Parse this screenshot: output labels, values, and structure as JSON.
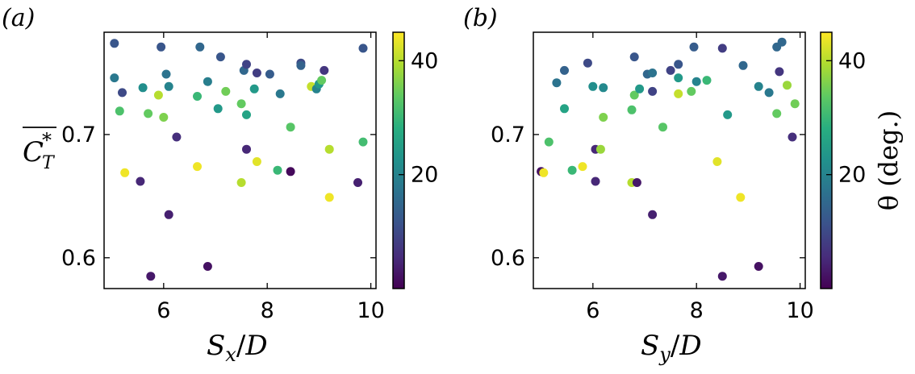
{
  "chart_data": [
    {
      "type": "scatter",
      "panel_label": "(a)",
      "xlabel": "S_x/D",
      "ylabel": "C_T*",
      "xlim": [
        4.85,
        10.1
      ],
      "ylim": [
        0.575,
        0.783
      ],
      "xticks": [
        6,
        8,
        10
      ],
      "yticks": [
        0.6,
        0.7
      ],
      "x_tick_labels": [
        "6",
        "8",
        "10"
      ],
      "y_tick_labels": [
        "0.6",
        "0.7"
      ],
      "colorbar": {
        "label": "θ (deg.)",
        "range": [
          0,
          45
        ],
        "ticks": [
          20,
          40
        ],
        "tick_labels": [
          "20",
          "40"
        ],
        "colormap": "viridis"
      },
      "points": [
        {
          "x": 5.05,
          "y": 0.774,
          "c": 12
        },
        {
          "x": 5.05,
          "y": 0.746,
          "c": 18
        },
        {
          "x": 5.2,
          "y": 0.734,
          "c": 10
        },
        {
          "x": 5.15,
          "y": 0.719,
          "c": 32
        },
        {
          "x": 5.25,
          "y": 0.669,
          "c": 44
        },
        {
          "x": 5.55,
          "y": 0.662,
          "c": 5
        },
        {
          "x": 5.6,
          "y": 0.738,
          "c": 22
        },
        {
          "x": 5.7,
          "y": 0.717,
          "c": 34
        },
        {
          "x": 5.75,
          "y": 0.585,
          "c": 3
        },
        {
          "x": 5.9,
          "y": 0.732,
          "c": 40
        },
        {
          "x": 5.95,
          "y": 0.771,
          "c": 12
        },
        {
          "x": 6.0,
          "y": 0.714,
          "c": 36
        },
        {
          "x": 6.05,
          "y": 0.749,
          "c": 17
        },
        {
          "x": 6.1,
          "y": 0.739,
          "c": 20
        },
        {
          "x": 6.1,
          "y": 0.635,
          "c": 4
        },
        {
          "x": 6.25,
          "y": 0.698,
          "c": 6
        },
        {
          "x": 6.65,
          "y": 0.731,
          "c": 30
        },
        {
          "x": 6.65,
          "y": 0.674,
          "c": 44
        },
        {
          "x": 6.7,
          "y": 0.771,
          "c": 15
        },
        {
          "x": 6.85,
          "y": 0.743,
          "c": 19
        },
        {
          "x": 6.85,
          "y": 0.593,
          "c": 2
        },
        {
          "x": 7.05,
          "y": 0.721,
          "c": 24
        },
        {
          "x": 7.1,
          "y": 0.763,
          "c": 12
        },
        {
          "x": 7.2,
          "y": 0.735,
          "c": 35
        },
        {
          "x": 7.5,
          "y": 0.725,
          "c": 34
        },
        {
          "x": 7.5,
          "y": 0.661,
          "c": 40
        },
        {
          "x": 7.55,
          "y": 0.752,
          "c": 15
        },
        {
          "x": 7.6,
          "y": 0.757,
          "c": 9
        },
        {
          "x": 7.6,
          "y": 0.716,
          "c": 26
        },
        {
          "x": 7.6,
          "y": 0.688,
          "c": 5
        },
        {
          "x": 7.75,
          "y": 0.737,
          "c": 24
        },
        {
          "x": 7.8,
          "y": 0.75,
          "c": 8
        },
        {
          "x": 7.8,
          "y": 0.678,
          "c": 43
        },
        {
          "x": 8.05,
          "y": 0.749,
          "c": 13
        },
        {
          "x": 8.2,
          "y": 0.671,
          "c": 30
        },
        {
          "x": 8.25,
          "y": 0.733,
          "c": 18
        },
        {
          "x": 8.45,
          "y": 0.706,
          "c": 33
        },
        {
          "x": 8.45,
          "y": 0.67,
          "c": 1
        },
        {
          "x": 8.65,
          "y": 0.758,
          "c": 10
        },
        {
          "x": 8.65,
          "y": 0.756,
          "c": 14
        },
        {
          "x": 8.85,
          "y": 0.739,
          "c": 41
        },
        {
          "x": 8.95,
          "y": 0.737,
          "c": 20
        },
        {
          "x": 9.0,
          "y": 0.741,
          "c": 24
        },
        {
          "x": 9.05,
          "y": 0.744,
          "c": 34
        },
        {
          "x": 9.1,
          "y": 0.752,
          "c": 7
        },
        {
          "x": 9.2,
          "y": 0.688,
          "c": 40
        },
        {
          "x": 9.2,
          "y": 0.649,
          "c": 44
        },
        {
          "x": 9.75,
          "y": 0.661,
          "c": 4
        },
        {
          "x": 9.85,
          "y": 0.77,
          "c": 12
        },
        {
          "x": 9.85,
          "y": 0.694,
          "c": 31
        }
      ]
    },
    {
      "type": "scatter",
      "panel_label": "(b)",
      "xlabel": "S_y/D",
      "ylabel": "",
      "xlim": [
        4.85,
        10.1
      ],
      "ylim": [
        0.575,
        0.783
      ],
      "xticks": [
        6,
        8,
        10
      ],
      "yticks": [
        0.6,
        0.7
      ],
      "x_tick_labels": [
        "6",
        "8",
        "10"
      ],
      "y_tick_labels": [
        "0.6",
        "0.7"
      ],
      "colorbar": {
        "label": "θ (deg.)",
        "range": [
          0,
          45
        ],
        "ticks": [
          20,
          40
        ],
        "tick_labels": [
          "20",
          "40"
        ],
        "colormap": "viridis"
      },
      "points": [
        {
          "x": 5.0,
          "y": 0.67,
          "c": 2
        },
        {
          "x": 5.05,
          "y": 0.669,
          "c": 44
        },
        {
          "x": 5.15,
          "y": 0.694,
          "c": 32
        },
        {
          "x": 5.3,
          "y": 0.742,
          "c": 17
        },
        {
          "x": 5.45,
          "y": 0.752,
          "c": 14
        },
        {
          "x": 5.45,
          "y": 0.721,
          "c": 26
        },
        {
          "x": 5.6,
          "y": 0.671,
          "c": 30
        },
        {
          "x": 5.8,
          "y": 0.674,
          "c": 44
        },
        {
          "x": 5.9,
          "y": 0.758,
          "c": 10
        },
        {
          "x": 6.0,
          "y": 0.739,
          "c": 22
        },
        {
          "x": 6.05,
          "y": 0.688,
          "c": 5
        },
        {
          "x": 6.05,
          "y": 0.662,
          "c": 5
        },
        {
          "x": 6.15,
          "y": 0.688,
          "c": 38
        },
        {
          "x": 6.2,
          "y": 0.738,
          "c": 21
        },
        {
          "x": 6.2,
          "y": 0.714,
          "c": 36
        },
        {
          "x": 6.75,
          "y": 0.661,
          "c": 40
        },
        {
          "x": 6.75,
          "y": 0.72,
          "c": 32
        },
        {
          "x": 6.8,
          "y": 0.763,
          "c": 12
        },
        {
          "x": 6.8,
          "y": 0.732,
          "c": 34
        },
        {
          "x": 6.85,
          "y": 0.661,
          "c": 3
        },
        {
          "x": 6.9,
          "y": 0.737,
          "c": 24
        },
        {
          "x": 7.05,
          "y": 0.749,
          "c": 15
        },
        {
          "x": 7.15,
          "y": 0.75,
          "c": 17
        },
        {
          "x": 7.15,
          "y": 0.735,
          "c": 9
        },
        {
          "x": 7.15,
          "y": 0.635,
          "c": 4
        },
        {
          "x": 7.35,
          "y": 0.706,
          "c": 33
        },
        {
          "x": 7.5,
          "y": 0.752,
          "c": 9
        },
        {
          "x": 7.65,
          "y": 0.757,
          "c": 12
        },
        {
          "x": 7.65,
          "y": 0.746,
          "c": 24
        },
        {
          "x": 7.65,
          "y": 0.733,
          "c": 41
        },
        {
          "x": 7.9,
          "y": 0.735,
          "c": 34
        },
        {
          "x": 7.95,
          "y": 0.771,
          "c": 13
        },
        {
          "x": 8.0,
          "y": 0.743,
          "c": 20
        },
        {
          "x": 8.2,
          "y": 0.744,
          "c": 30
        },
        {
          "x": 8.4,
          "y": 0.678,
          "c": 43
        },
        {
          "x": 8.5,
          "y": 0.77,
          "c": 8
        },
        {
          "x": 8.5,
          "y": 0.585,
          "c": 3
        },
        {
          "x": 8.6,
          "y": 0.716,
          "c": 24
        },
        {
          "x": 8.85,
          "y": 0.649,
          "c": 44
        },
        {
          "x": 8.9,
          "y": 0.756,
          "c": 15
        },
        {
          "x": 9.2,
          "y": 0.739,
          "c": 20
        },
        {
          "x": 9.2,
          "y": 0.593,
          "c": 2
        },
        {
          "x": 9.4,
          "y": 0.734,
          "c": 18
        },
        {
          "x": 9.55,
          "y": 0.771,
          "c": 15
        },
        {
          "x": 9.55,
          "y": 0.717,
          "c": 34
        },
        {
          "x": 9.6,
          "y": 0.751,
          "c": 7
        },
        {
          "x": 9.65,
          "y": 0.775,
          "c": 15
        },
        {
          "x": 9.75,
          "y": 0.74,
          "c": 38
        },
        {
          "x": 9.85,
          "y": 0.698,
          "c": 6
        },
        {
          "x": 9.9,
          "y": 0.725,
          "c": 35
        }
      ]
    }
  ]
}
